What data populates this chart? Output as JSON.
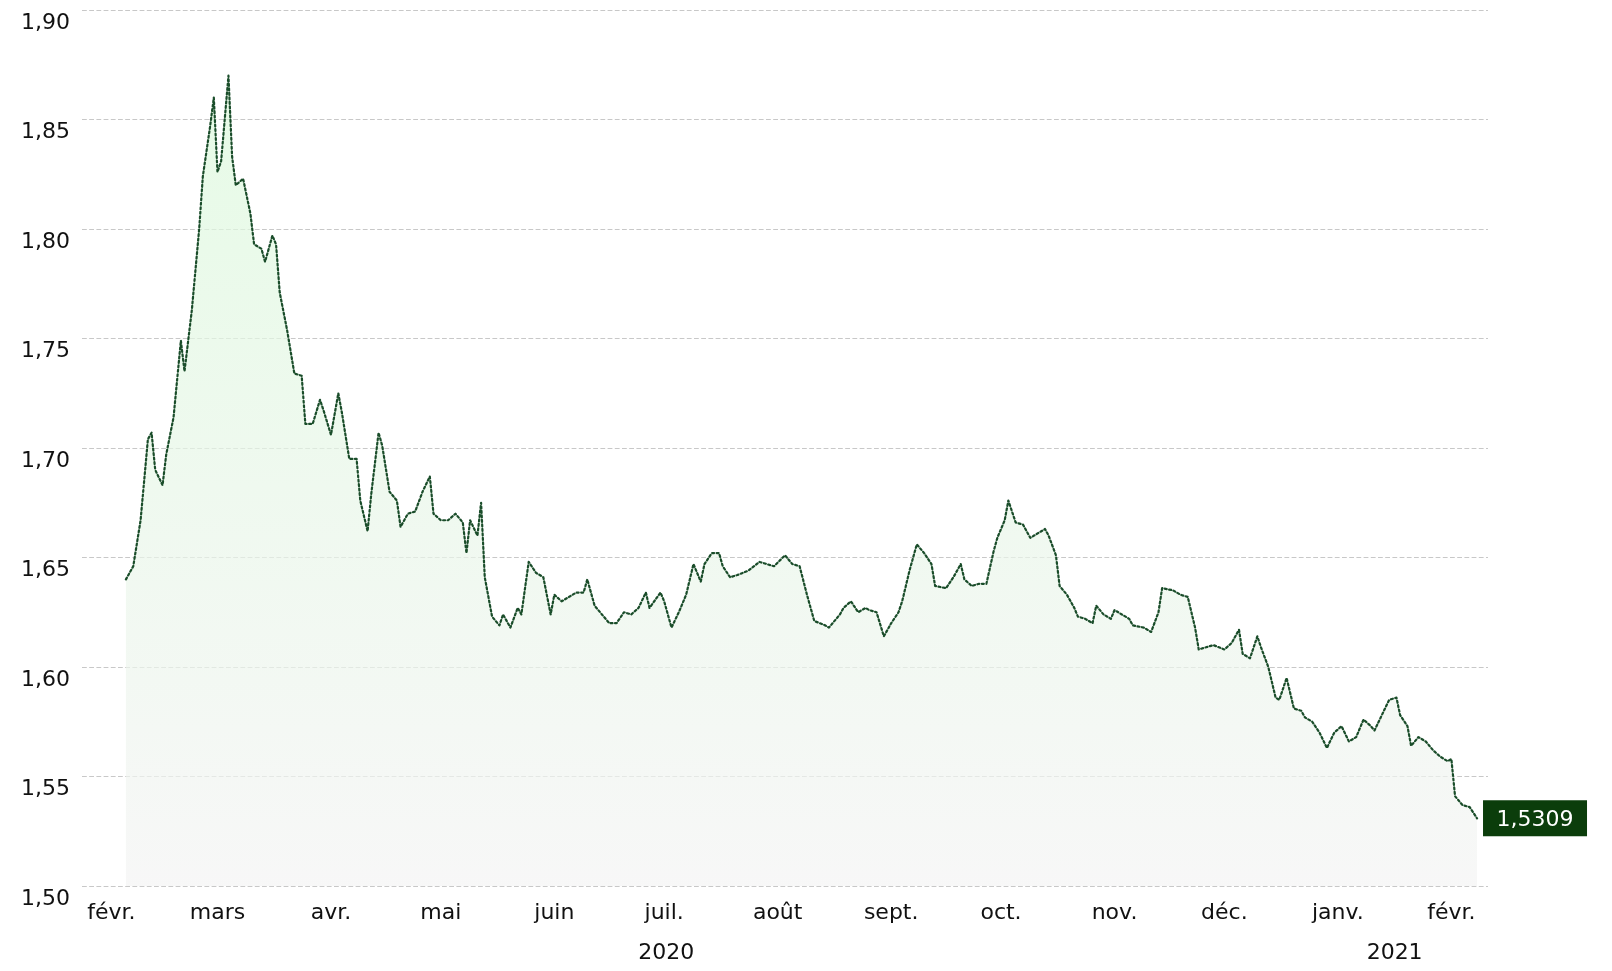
{
  "chart_data": {
    "type": "area",
    "line_style": "dotted",
    "grid": "y",
    "xlim": [
      "2020-01-24",
      "2021-02-11"
    ],
    "xticks": [
      {
        "value": "2020-02-01",
        "label": "févr."
      },
      {
        "value": "2020-03-01",
        "label": "mars"
      },
      {
        "value": "2020-04-01",
        "label": "avr."
      },
      {
        "value": "2020-05-01",
        "label": "mai"
      },
      {
        "value": "2020-06-01",
        "label": "juin"
      },
      {
        "value": "2020-07-01",
        "label": "juil."
      },
      {
        "value": "2020-08-01",
        "label": "août"
      },
      {
        "value": "2020-09-01",
        "label": "sept."
      },
      {
        "value": "2020-10-01",
        "label": "oct."
      },
      {
        "value": "2020-11-01",
        "label": "nov."
      },
      {
        "value": "2020-12-01",
        "label": "déc."
      },
      {
        "value": "2021-01-01",
        "label": "janv."
      },
      {
        "value": "2021-02-01",
        "label": "févr."
      }
    ],
    "ylim": [
      1.5,
      1.9
    ],
    "yticks": [
      {
        "value": 1.5,
        "label": "1,50"
      },
      {
        "value": 1.55,
        "label": "1,55"
      },
      {
        "value": 1.6,
        "label": "1,60"
      },
      {
        "value": 1.65,
        "label": "1,65"
      },
      {
        "value": 1.7,
        "label": "1,70"
      },
      {
        "value": 1.75,
        "label": "1,75"
      },
      {
        "value": 1.8,
        "label": "1,80"
      },
      {
        "value": 1.85,
        "label": "1,85"
      },
      {
        "value": 1.9,
        "label": "1,90"
      }
    ],
    "annotations": [
      "2020",
      "2021",
      {
        "text": "1,5309",
        "x": "2021-02-08",
        "y": 1.5309
      }
    ],
    "series": [
      {
        "color": "#1a4d2a",
        "x": [
          "2020-02-05",
          "2020-02-07",
          "2020-02-09",
          "2020-02-11",
          "2020-02-12",
          "2020-02-13",
          "2020-02-15",
          "2020-02-16",
          "2020-02-18",
          "2020-02-20",
          "2020-02-21",
          "2020-02-23",
          "2020-02-25",
          "2020-02-26",
          "2020-02-28",
          "2020-02-29",
          "2020-03-01",
          "2020-03-02",
          "2020-03-04",
          "2020-03-05",
          "2020-03-06",
          "2020-03-08",
          "2020-03-10",
          "2020-03-11",
          "2020-03-13",
          "2020-03-14",
          "2020-03-16",
          "2020-03-17",
          "2020-03-18",
          "2020-03-20",
          "2020-03-22",
          "2020-03-24",
          "2020-03-25",
          "2020-03-27",
          "2020-03-29",
          "2020-03-30",
          "2020-04-01",
          "2020-04-03",
          "2020-04-04",
          "2020-04-06",
          "2020-04-08",
          "2020-04-09",
          "2020-04-11",
          "2020-04-12",
          "2020-04-14",
          "2020-04-15",
          "2020-04-17",
          "2020-04-19",
          "2020-04-20",
          "2020-04-22",
          "2020-04-24",
          "2020-04-26",
          "2020-04-28",
          "2020-04-29",
          "2020-05-01",
          "2020-05-03",
          "2020-05-05",
          "2020-05-07",
          "2020-05-08",
          "2020-05-09",
          "2020-05-11",
          "2020-05-12",
          "2020-05-13",
          "2020-05-15",
          "2020-05-17",
          "2020-05-18",
          "2020-05-20",
          "2020-05-22",
          "2020-05-23",
          "2020-05-25",
          "2020-05-27",
          "2020-05-29",
          "2020-05-31",
          "2020-06-01",
          "2020-06-03",
          "2020-06-05",
          "2020-06-07",
          "2020-06-09",
          "2020-06-10",
          "2020-06-12",
          "2020-06-14",
          "2020-06-16",
          "2020-06-18",
          "2020-06-20",
          "2020-06-22",
          "2020-06-24",
          "2020-06-26",
          "2020-06-27",
          "2020-06-30",
          "2020-07-01",
          "2020-07-03",
          "2020-07-05",
          "2020-07-07",
          "2020-07-09",
          "2020-07-11",
          "2020-07-12",
          "2020-07-14",
          "2020-07-16",
          "2020-07-17",
          "2020-07-19",
          "2020-07-21",
          "2020-07-24",
          "2020-07-27",
          "2020-07-29",
          "2020-07-31",
          "2020-08-03",
          "2020-08-05",
          "2020-08-07",
          "2020-08-09",
          "2020-08-11",
          "2020-08-14",
          "2020-08-15",
          "2020-08-18",
          "2020-08-19",
          "2020-08-21",
          "2020-08-23",
          "2020-08-25",
          "2020-08-26",
          "2020-08-28",
          "2020-08-30",
          "2020-09-01",
          "2020-09-03",
          "2020-09-04",
          "2020-09-06",
          "2020-09-08",
          "2020-09-10",
          "2020-09-12",
          "2020-09-13",
          "2020-09-16",
          "2020-09-18",
          "2020-09-20",
          "2020-09-21",
          "2020-09-23",
          "2020-09-25",
          "2020-09-27",
          "2020-09-29",
          "2020-09-30",
          "2020-10-02",
          "2020-10-03",
          "2020-10-05",
          "2020-10-07",
          "2020-10-09",
          "2020-10-11",
          "2020-10-13",
          "2020-10-14",
          "2020-10-16",
          "2020-10-17",
          "2020-10-19",
          "2020-10-21",
          "2020-10-22",
          "2020-10-24",
          "2020-10-26",
          "2020-10-27",
          "2020-10-29",
          "2020-10-31",
          "2020-11-01",
          "2020-11-03",
          "2020-11-05",
          "2020-11-06",
          "2020-11-09",
          "2020-11-11",
          "2020-11-13",
          "2020-11-14",
          "2020-11-17",
          "2020-11-19",
          "2020-11-21",
          "2020-11-23",
          "2020-11-24",
          "2020-11-26",
          "2020-11-28",
          "2020-12-01",
          "2020-12-03",
          "2020-12-05",
          "2020-12-06",
          "2020-12-08",
          "2020-12-10",
          "2020-12-11",
          "2020-12-13",
          "2020-12-15",
          "2020-12-16",
          "2020-12-18",
          "2020-12-20",
          "2020-12-22",
          "2020-12-23",
          "2020-12-25",
          "2020-12-27",
          "2020-12-29",
          "2020-12-31",
          "2021-01-02",
          "2021-01-04",
          "2021-01-06",
          "2021-01-08",
          "2021-01-10",
          "2021-01-11",
          "2021-01-13",
          "2021-01-15",
          "2021-01-17",
          "2021-01-18",
          "2021-01-20",
          "2021-01-21",
          "2021-01-23",
          "2021-01-25",
          "2021-01-27",
          "2021-01-29",
          "2021-01-31",
          "2021-02-01",
          "2021-02-02",
          "2021-02-04",
          "2021-02-06",
          "2021-02-08"
        ],
        "values": [
          1.64,
          1.646,
          1.667,
          1.704,
          1.707,
          1.69,
          1.683,
          1.697,
          1.714,
          1.749,
          1.735,
          1.763,
          1.8,
          1.824,
          1.847,
          1.86,
          1.826,
          1.831,
          1.87,
          1.833,
          1.82,
          1.823,
          1.807,
          1.793,
          1.791,
          1.785,
          1.797,
          1.793,
          1.771,
          1.754,
          1.734,
          1.733,
          1.711,
          1.711,
          1.722,
          1.717,
          1.706,
          1.725,
          1.716,
          1.695,
          1.695,
          1.676,
          1.662,
          1.679,
          1.707,
          1.701,
          1.68,
          1.676,
          1.664,
          1.67,
          1.671,
          1.68,
          1.687,
          1.67,
          1.667,
          1.667,
          1.67,
          1.666,
          1.652,
          1.667,
          1.66,
          1.675,
          1.641,
          1.623,
          1.619,
          1.624,
          1.618,
          1.627,
          1.624,
          1.648,
          1.643,
          1.641,
          1.624,
          1.633,
          1.63,
          1.632,
          1.634,
          1.634,
          1.64,
          1.628,
          1.624,
          1.62,
          1.62,
          1.625,
          1.624,
          1.627,
          1.634,
          1.627,
          1.634,
          1.63,
          1.618,
          1.625,
          1.633,
          1.647,
          1.639,
          1.647,
          1.652,
          1.652,
          1.646,
          1.641,
          1.642,
          1.644,
          1.648,
          1.647,
          1.646,
          1.651,
          1.647,
          1.646,
          1.633,
          1.621,
          1.619,
          1.618,
          1.624,
          1.627,
          1.63,
          1.625,
          1.627,
          1.626,
          1.625,
          1.614,
          1.62,
          1.625,
          1.63,
          1.644,
          1.656,
          1.652,
          1.647,
          1.637,
          1.636,
          1.641,
          1.647,
          1.64,
          1.637,
          1.638,
          1.638,
          1.653,
          1.659,
          1.667,
          1.676,
          1.666,
          1.665,
          1.659,
          1.661,
          1.663,
          1.66,
          1.651,
          1.637,
          1.633,
          1.627,
          1.623,
          1.622,
          1.62,
          1.628,
          1.624,
          1.622,
          1.626,
          1.624,
          1.622,
          1.619,
          1.618,
          1.616,
          1.625,
          1.636,
          1.635,
          1.633,
          1.632,
          1.618,
          1.608,
          1.609,
          1.61,
          1.608,
          1.611,
          1.617,
          1.606,
          1.604,
          1.614,
          1.609,
          1.6,
          1.586,
          1.585,
          1.595,
          1.581,
          1.58,
          1.577,
          1.575,
          1.57,
          1.563,
          1.57,
          1.573,
          1.566,
          1.568,
          1.576,
          1.573,
          1.571,
          1.578,
          1.585,
          1.586,
          1.578,
          1.573,
          1.564,
          1.568,
          1.566,
          1.562,
          1.559,
          1.557,
          1.558,
          1.541,
          1.537,
          1.536,
          1.5309
        ]
      }
    ]
  }
}
